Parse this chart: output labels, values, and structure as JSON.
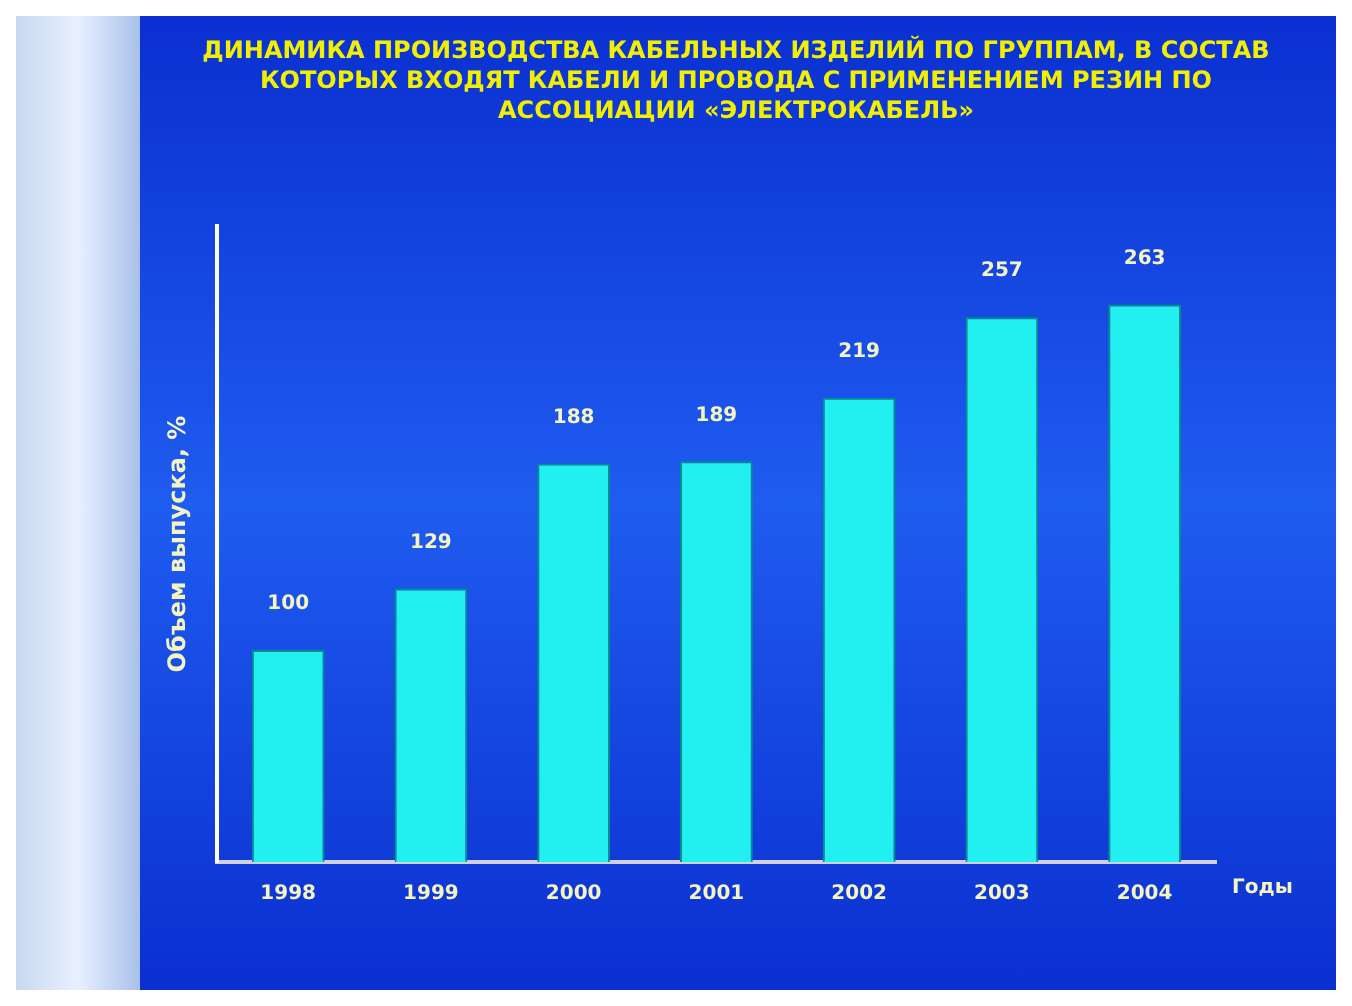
{
  "chart_data": {
    "type": "bar",
    "title": "ДИНАМИКА ПРОИЗВОДСТВА КАБЕЛЬНЫХ ИЗДЕЛИЙ ПО ГРУППАМ, В СОСТАВ КОТОРЫХ ВХОДЯТ КАБЕЛИ И ПРОВОДА С ПРИМЕНЕНИЕМ РЕЗИН ПО АССОЦИАЦИИ «ЭЛЕКТРОКАБЕЛЬ»",
    "ylabel": "Объем выпуска, %",
    "xlabel": "Годы",
    "categories": [
      "1998",
      "1999",
      "2000",
      "2001",
      "2002",
      "2003",
      "2004"
    ],
    "values": [
      100,
      129,
      188,
      189,
      219,
      257,
      263
    ],
    "color": "#22f0f0",
    "data_labels": true,
    "grid": false,
    "legend": false
  }
}
